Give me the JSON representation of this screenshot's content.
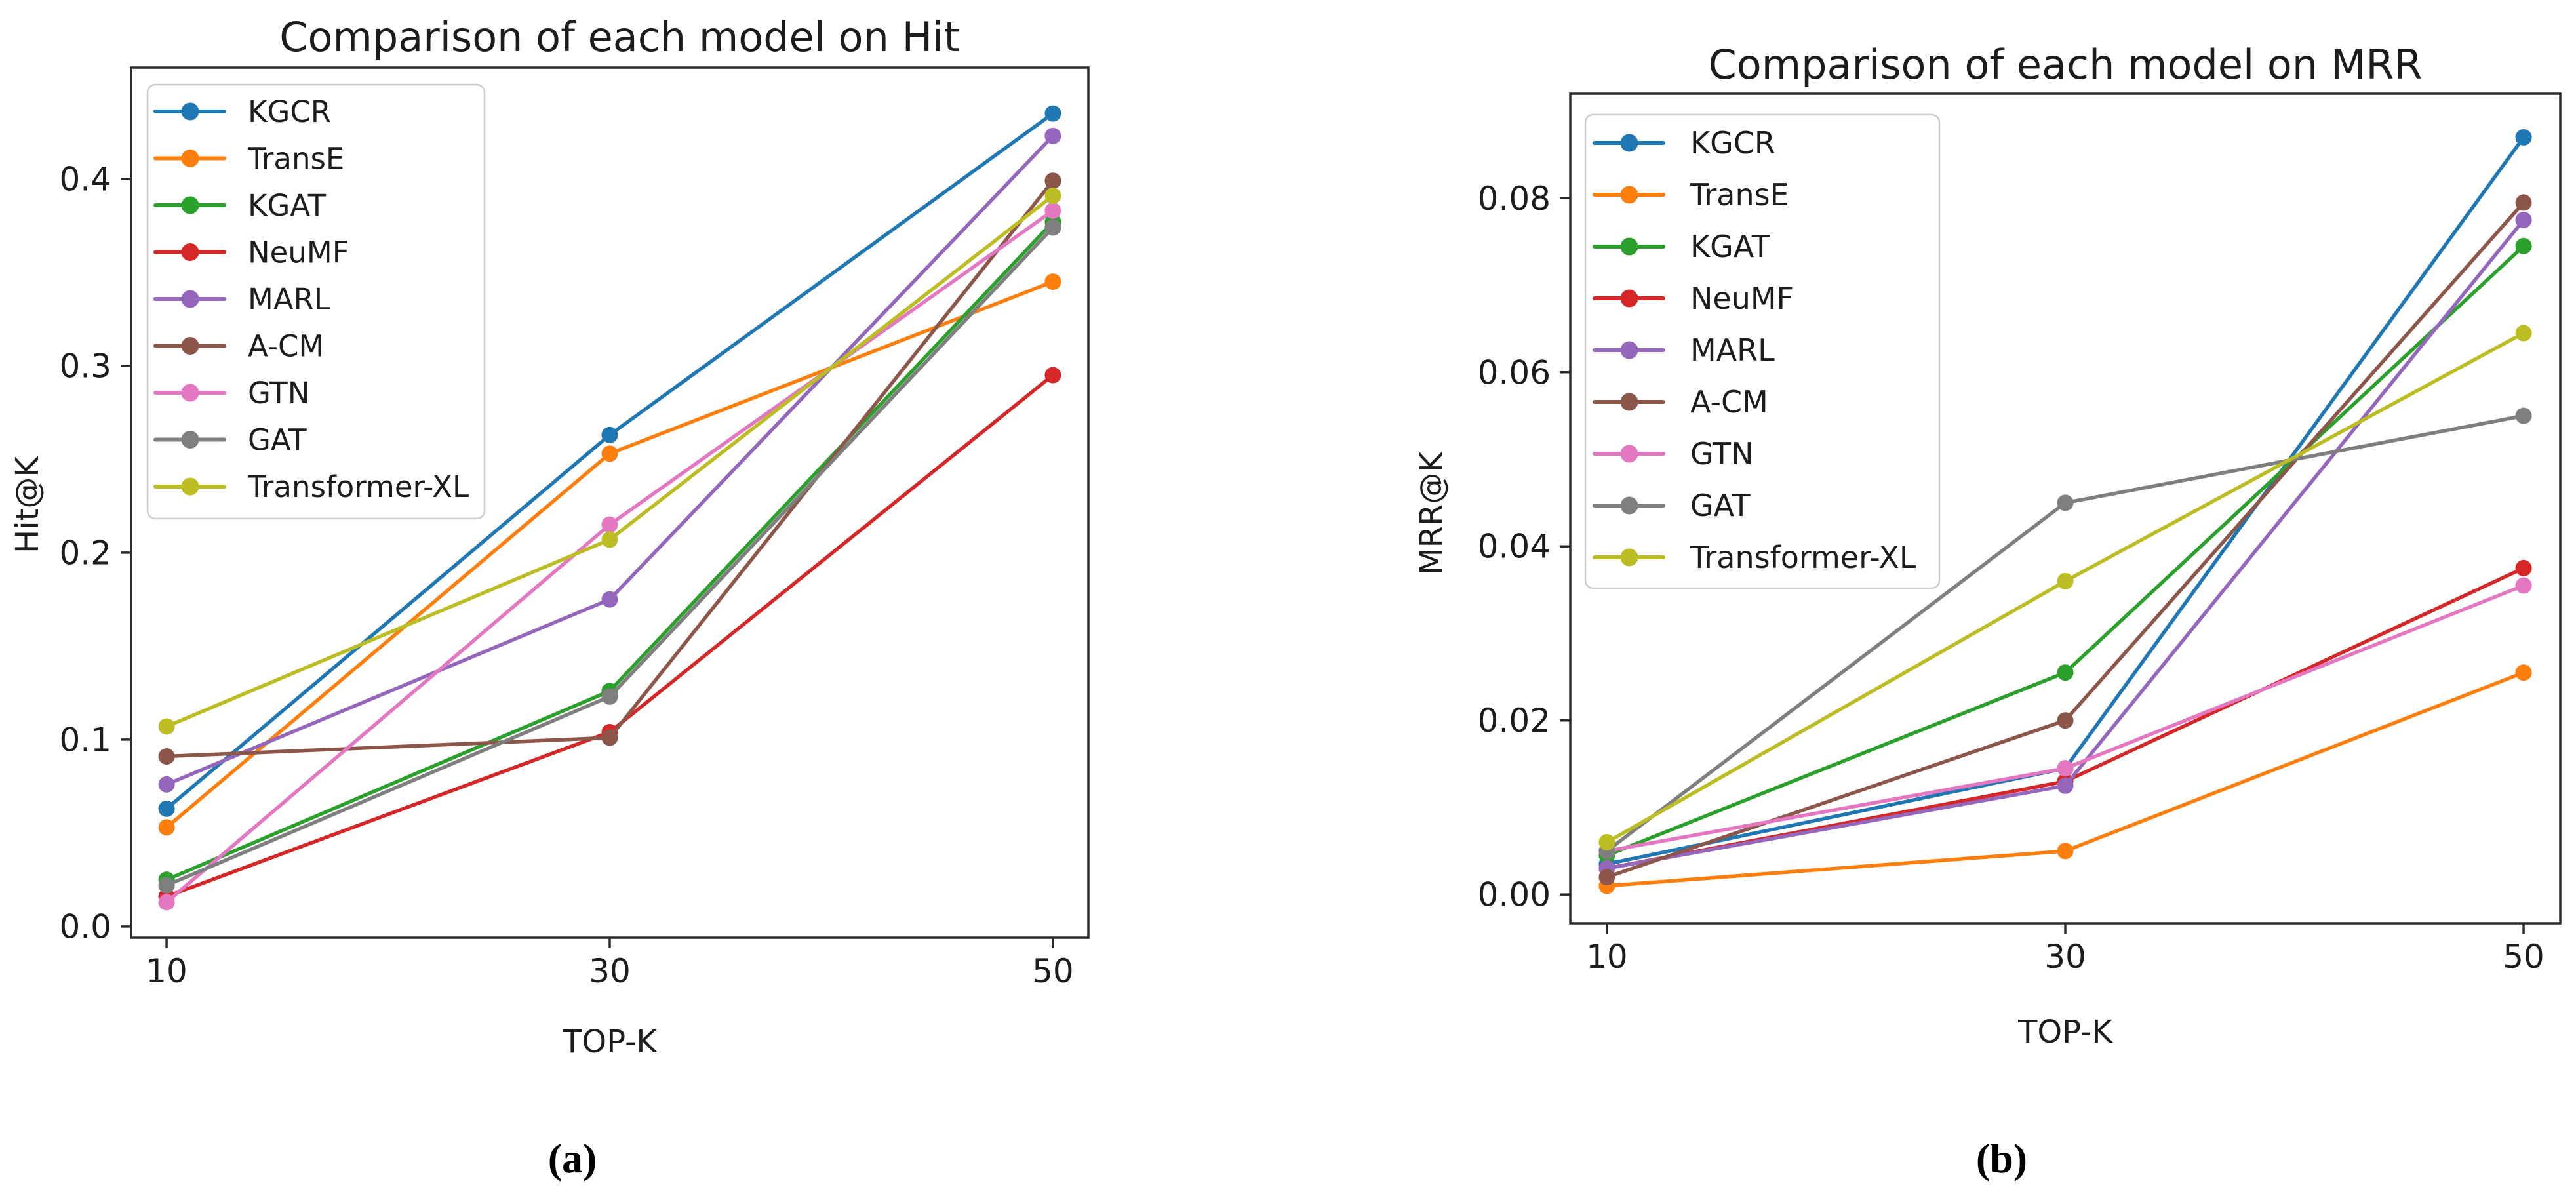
{
  "figure": {
    "background": "#ffffff",
    "text_color": "#1c1c1c",
    "spine_color": "#2a2a2a",
    "legend_border_color": "#cccccc",
    "legend_background": "rgba(255,255,255,0.85)"
  },
  "panels": {
    "a": "(a)",
    "b": "(b)"
  },
  "chart_data": [
    {
      "type": "line",
      "id": "hit",
      "title": "Comparison of each model on Hit",
      "xlabel": "TOP-K",
      "ylabel": "Hit@K",
      "x": [
        10,
        30,
        50
      ],
      "xtick_labels": [
        "10",
        "30",
        "50"
      ],
      "xlim": [
        8.4,
        51.6
      ],
      "yticks": [
        0.0,
        0.1,
        0.2,
        0.3,
        0.4
      ],
      "ytick_labels": [
        "0.0",
        "0.1",
        "0.2",
        "0.3",
        "0.4"
      ],
      "ylim": [
        -0.006,
        0.4596
      ],
      "grid": false,
      "legend_position": "upper left",
      "series": [
        {
          "name": "KGCR",
          "color": "#1f77b4",
          "values": [
            0.063,
            0.263,
            0.435
          ]
        },
        {
          "name": "TransE",
          "color": "#ff7f0e",
          "values": [
            0.053,
            0.253,
            0.345
          ]
        },
        {
          "name": "KGAT",
          "color": "#2ca02c",
          "values": [
            0.025,
            0.126,
            0.377
          ]
        },
        {
          "name": "NeuMF",
          "color": "#d62728",
          "values": [
            0.016,
            0.104,
            0.295
          ]
        },
        {
          "name": "MARL",
          "color": "#9467bd",
          "values": [
            0.076,
            0.175,
            0.423
          ]
        },
        {
          "name": "A-CM",
          "color": "#8c564b",
          "values": [
            0.091,
            0.101,
            0.399
          ]
        },
        {
          "name": "GTN",
          "color": "#e377c2",
          "values": [
            0.013,
            0.215,
            0.383
          ]
        },
        {
          "name": "GAT",
          "color": "#7f7f7f",
          "values": [
            0.022,
            0.123,
            0.374
          ]
        },
        {
          "name": "Transformer-XL",
          "color": "#bcbd22",
          "values": [
            0.107,
            0.207,
            0.391
          ]
        }
      ]
    },
    {
      "type": "line",
      "id": "mrr",
      "title": "Comparison of each model on MRR",
      "xlabel": "TOP-K",
      "ylabel": "MRR@K",
      "x": [
        10,
        30,
        50
      ],
      "xtick_labels": [
        "10",
        "30",
        "50"
      ],
      "xlim": [
        8.4,
        51.6
      ],
      "yticks": [
        0.0,
        0.02,
        0.04,
        0.06,
        0.08
      ],
      "ytick_labels": [
        "0.00",
        "0.02",
        "0.04",
        "0.06",
        "0.08"
      ],
      "ylim": [
        -0.0033,
        0.092
      ],
      "grid": false,
      "legend_position": "upper left",
      "series": [
        {
          "name": "KGCR",
          "color": "#1f77b4",
          "values": [
            0.0035,
            0.0145,
            0.087
          ]
        },
        {
          "name": "TransE",
          "color": "#ff7f0e",
          "values": [
            0.001,
            0.005,
            0.0255
          ]
        },
        {
          "name": "KGAT",
          "color": "#2ca02c",
          "values": [
            0.0045,
            0.0255,
            0.0745
          ]
        },
        {
          "name": "NeuMF",
          "color": "#d62728",
          "values": [
            0.003,
            0.013,
            0.0375
          ]
        },
        {
          "name": "MARL",
          "color": "#9467bd",
          "values": [
            0.003,
            0.0125,
            0.0775
          ]
        },
        {
          "name": "A-CM",
          "color": "#8c564b",
          "values": [
            0.002,
            0.02,
            0.0795
          ]
        },
        {
          "name": "GTN",
          "color": "#e377c2",
          "values": [
            0.005,
            0.0145,
            0.0355
          ]
        },
        {
          "name": "GAT",
          "color": "#7f7f7f",
          "values": [
            0.005,
            0.045,
            0.055
          ]
        },
        {
          "name": "Transformer-XL",
          "color": "#bcbd22",
          "values": [
            0.006,
            0.036,
            0.0645
          ]
        }
      ]
    }
  ]
}
